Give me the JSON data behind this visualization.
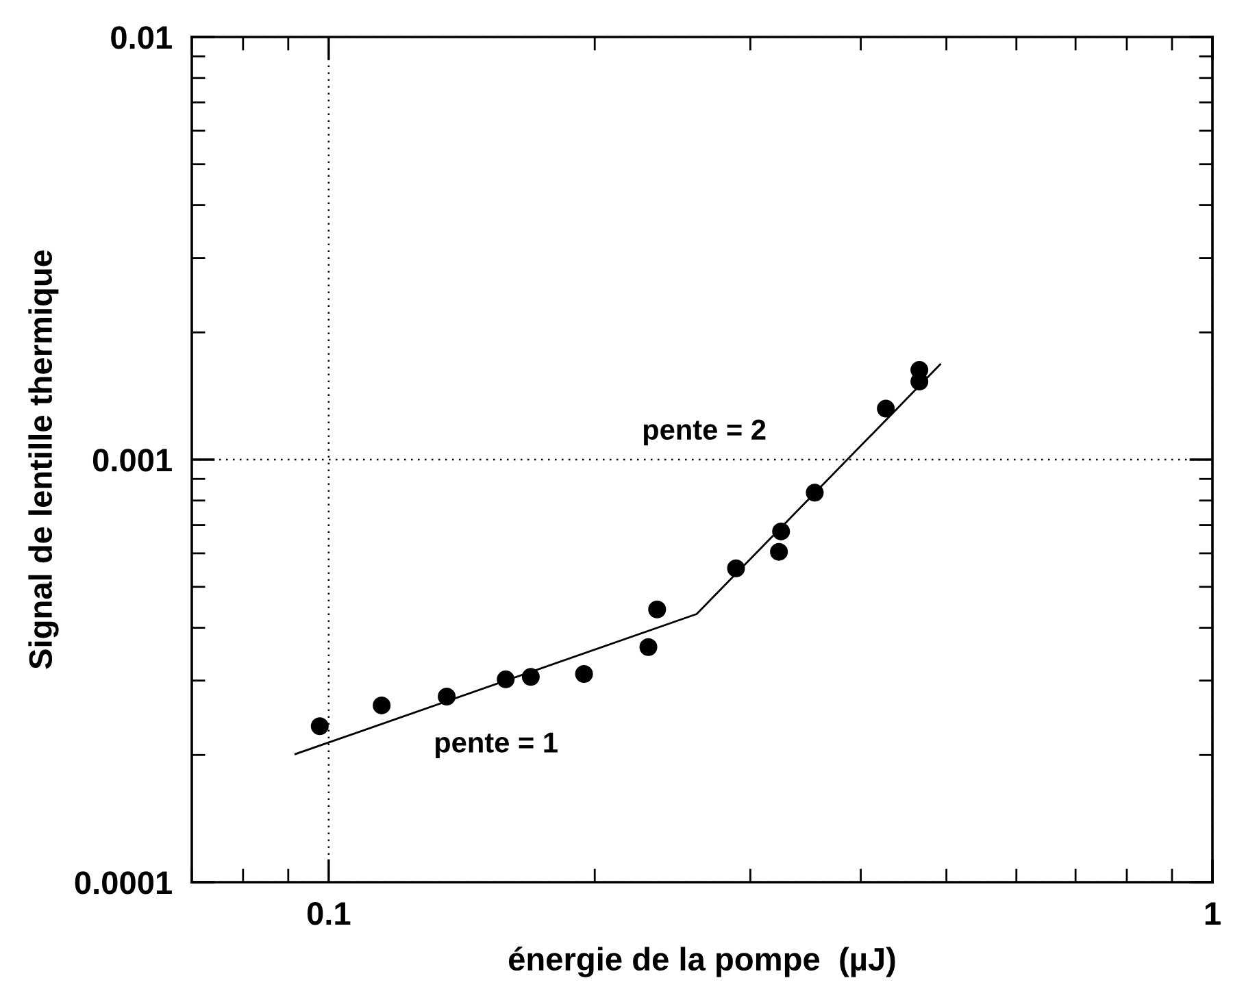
{
  "chart_data": {
    "type": "scatter",
    "xlabel": "énergie de la pompe  (µJ)",
    "ylabel": "Signal de lentille thermique",
    "log": "xy",
    "grid": true,
    "xlim": [
      0.07,
      1
    ],
    "xticks": [
      0.1,
      1
    ],
    "ylim": [
      0.0001,
      0.01
    ],
    "yticks": [
      0.0001,
      0.001,
      0.01
    ],
    "series": [
      {
        "color": "#000000",
        "marker": "circle",
        "x": [
          0.0977,
          0.1148,
          0.136,
          0.1586,
          0.1693,
          0.1945,
          0.23,
          0.2353,
          0.289,
          0.3232,
          0.325,
          0.3548,
          0.427,
          0.466,
          0.466
        ],
        "values": [
          0.000234,
          0.000262,
          0.000275,
          0.000302,
          0.000306,
          0.000311,
          0.00036,
          0.000442,
          0.000553,
          0.000605,
          0.000676,
          0.000835,
          0.00132,
          0.00163,
          0.00153
        ]
      },
      {
        "type": "line",
        "color": "#000000",
        "marker": "none",
        "line_style": "solid",
        "x": [
          0.0917,
          0.2608,
          0.492
        ],
        "values": [
          0.000201,
          0.000431,
          0.00168
        ]
      }
    ],
    "annotations": [
      "pente = 1",
      "pente = 2"
    ]
  }
}
